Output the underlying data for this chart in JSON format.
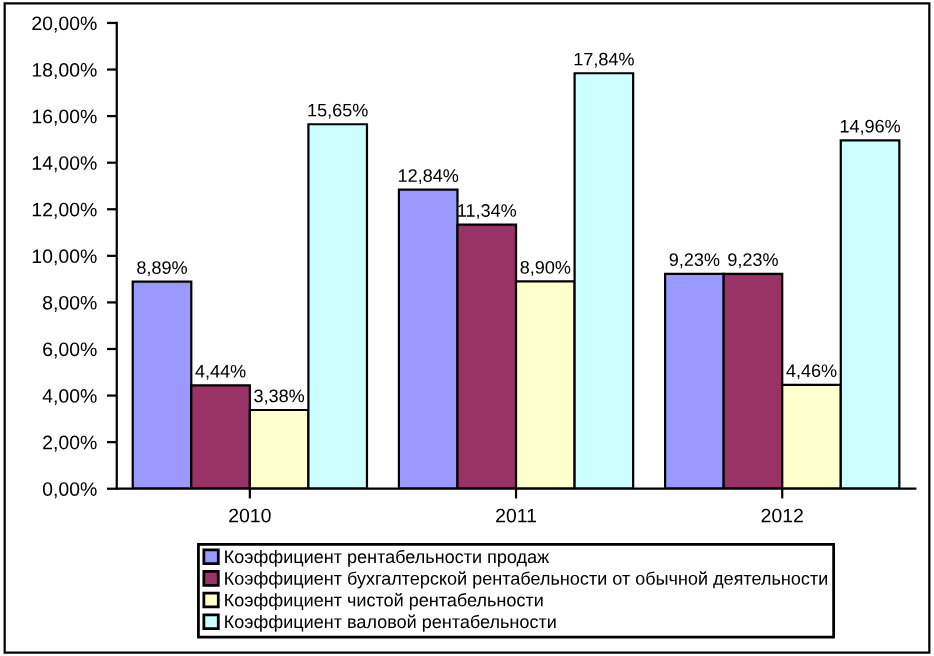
{
  "chart_data": {
    "type": "bar",
    "categories": [
      "2010",
      "2011",
      "2012"
    ],
    "series": [
      {
        "name": "Коэффициент рентабельности продаж",
        "color": "#9999ff",
        "values": [
          8.89,
          12.84,
          9.23
        ],
        "value_labels": [
          "8,89%",
          "12,84%",
          "9,23%"
        ]
      },
      {
        "name": "Коэффициент бухгалтерской рентабельности от обычной деятельности",
        "color": "#993366",
        "values": [
          4.44,
          11.34,
          9.23
        ],
        "value_labels": [
          "4,44%",
          "11,34%",
          "9,23%"
        ]
      },
      {
        "name": "Коэффициент чистой рентабельности",
        "color": "#ffffcc",
        "values": [
          3.38,
          8.9,
          4.46
        ],
        "value_labels": [
          "3,38%",
          "8,90%",
          "4,46%"
        ]
      },
      {
        "name": "Коэффициент валовой рентабельности",
        "color": "#ccffff",
        "values": [
          15.65,
          17.84,
          14.96
        ],
        "value_labels": [
          "15,65%",
          "17,84%",
          "14,96%"
        ]
      }
    ],
    "ylim": [
      0,
      20
    ],
    "yticks": [
      {
        "value": 0,
        "label": "0,00%"
      },
      {
        "value": 2,
        "label": "2,00%"
      },
      {
        "value": 4,
        "label": "4,00%"
      },
      {
        "value": 6,
        "label": "6,00%"
      },
      {
        "value": 8,
        "label": "8,00%"
      },
      {
        "value": 10,
        "label": "10,00%"
      },
      {
        "value": 12,
        "label": "12,00%"
      },
      {
        "value": 14,
        "label": "14,00%"
      },
      {
        "value": 16,
        "label": "16,00%"
      },
      {
        "value": 18,
        "label": "18,00%"
      },
      {
        "value": 20,
        "label": "20,00%"
      }
    ],
    "grid": false,
    "legend": "bottom"
  }
}
